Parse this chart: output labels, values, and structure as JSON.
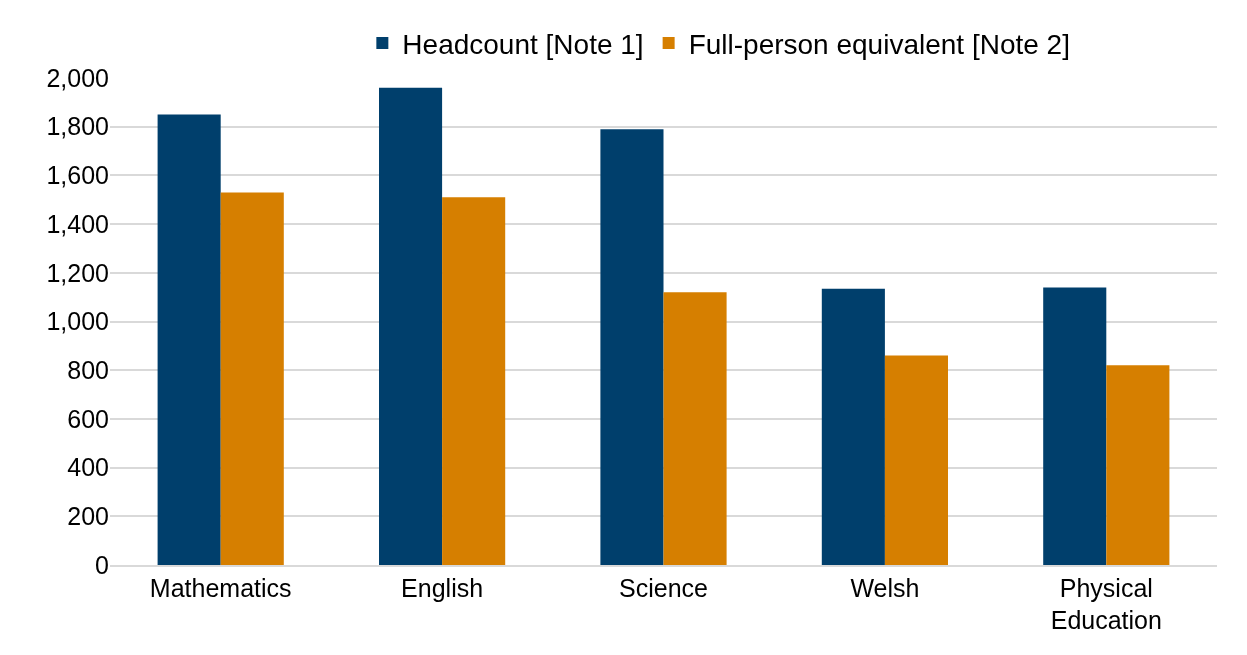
{
  "chart_data": {
    "type": "bar",
    "categories": [
      "Mathematics",
      "English",
      "Science",
      "Welsh",
      "Physical Education"
    ],
    "series": [
      {
        "name": "Headcount [Note 1]",
        "color": "#003f6c",
        "values": [
          1850,
          1960,
          1790,
          1135,
          1140
        ]
      },
      {
        "name": "Full-person equivalent [Note 2]",
        "color": "#d67f00",
        "values": [
          1530,
          1510,
          1120,
          860,
          820
        ]
      }
    ],
    "ylim": [
      0,
      2000
    ],
    "yticks": [
      {
        "value": 0,
        "label": "0"
      },
      {
        "value": 200,
        "label": "200"
      },
      {
        "value": 400,
        "label": "400"
      },
      {
        "value": 600,
        "label": "600"
      },
      {
        "value": 800,
        "label": "800"
      },
      {
        "value": 1000,
        "label": "1,000"
      },
      {
        "value": 1200,
        "label": "1,200"
      },
      {
        "value": 1400,
        "label": "1,400"
      },
      {
        "value": 1600,
        "label": "1,600"
      },
      {
        "value": 1800,
        "label": "1,800"
      },
      {
        "value": 2000,
        "label": "2,000"
      }
    ],
    "grid": "y",
    "legend": "top"
  }
}
